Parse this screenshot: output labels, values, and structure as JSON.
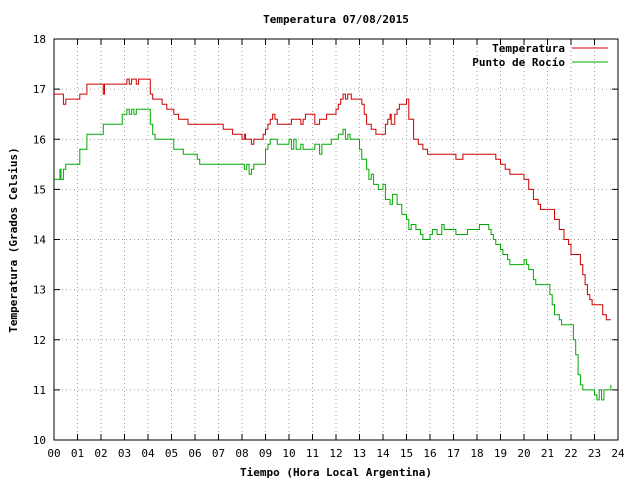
{
  "chart_data": {
    "type": "line",
    "title": "Temperatura 07/08/2015",
    "xlabel": "Tiempo (Hora Local Argentina)",
    "ylabel": "Temperatura (Grados Celsius)",
    "xlim": [
      0,
      24
    ],
    "ylim": [
      10,
      18
    ],
    "xticks": [
      "00",
      "01",
      "02",
      "03",
      "04",
      "05",
      "06",
      "07",
      "08",
      "09",
      "10",
      "11",
      "12",
      "13",
      "14",
      "15",
      "16",
      "17",
      "18",
      "19",
      "20",
      "21",
      "22",
      "23",
      "24"
    ],
    "yticks": [
      "10",
      "11",
      "12",
      "13",
      "14",
      "15",
      "16",
      "17",
      "18"
    ],
    "grid": true,
    "legend_position": "top-right",
    "series": [
      {
        "name": "Temperatura",
        "color": "#cc0000",
        "points": [
          [
            0.0,
            16.9
          ],
          [
            0.3,
            16.9
          ],
          [
            0.4,
            16.7
          ],
          [
            0.5,
            16.8
          ],
          [
            1.0,
            16.8
          ],
          [
            1.1,
            16.9
          ],
          [
            1.3,
            16.9
          ],
          [
            1.4,
            17.1
          ],
          [
            2.0,
            17.1
          ],
          [
            2.1,
            16.9
          ],
          [
            2.15,
            17.1
          ],
          [
            3.0,
            17.1
          ],
          [
            3.1,
            17.2
          ],
          [
            3.2,
            17.1
          ],
          [
            3.3,
            17.2
          ],
          [
            3.5,
            17.1
          ],
          [
            3.6,
            17.2
          ],
          [
            4.0,
            17.2
          ],
          [
            4.1,
            16.9
          ],
          [
            4.2,
            16.8
          ],
          [
            4.5,
            16.8
          ],
          [
            4.6,
            16.7
          ],
          [
            4.8,
            16.6
          ],
          [
            5.0,
            16.6
          ],
          [
            5.1,
            16.5
          ],
          [
            5.3,
            16.4
          ],
          [
            5.6,
            16.4
          ],
          [
            5.7,
            16.3
          ],
          [
            7.1,
            16.3
          ],
          [
            7.2,
            16.2
          ],
          [
            7.5,
            16.2
          ],
          [
            7.6,
            16.1
          ],
          [
            7.9,
            16.1
          ],
          [
            8.0,
            16.0
          ],
          [
            8.1,
            16.1
          ],
          [
            8.15,
            16.0
          ],
          [
            8.3,
            16.0
          ],
          [
            8.4,
            15.9
          ],
          [
            8.5,
            16.0
          ],
          [
            8.9,
            16.1
          ],
          [
            9.0,
            16.2
          ],
          [
            9.1,
            16.3
          ],
          [
            9.2,
            16.4
          ],
          [
            9.3,
            16.5
          ],
          [
            9.4,
            16.4
          ],
          [
            9.5,
            16.3
          ],
          [
            10.0,
            16.3
          ],
          [
            10.1,
            16.4
          ],
          [
            10.4,
            16.4
          ],
          [
            10.5,
            16.3
          ],
          [
            10.6,
            16.4
          ],
          [
            10.7,
            16.5
          ],
          [
            11.0,
            16.5
          ],
          [
            11.1,
            16.3
          ],
          [
            11.3,
            16.4
          ],
          [
            11.5,
            16.4
          ],
          [
            11.6,
            16.5
          ],
          [
            11.8,
            16.5
          ],
          [
            12.0,
            16.6
          ],
          [
            12.1,
            16.7
          ],
          [
            12.2,
            16.8
          ],
          [
            12.3,
            16.9
          ],
          [
            12.4,
            16.8
          ],
          [
            12.5,
            16.9
          ],
          [
            12.6,
            16.9
          ],
          [
            12.65,
            16.8
          ],
          [
            12.9,
            16.8
          ],
          [
            13.1,
            16.7
          ],
          [
            13.2,
            16.5
          ],
          [
            13.3,
            16.3
          ],
          [
            13.5,
            16.2
          ],
          [
            13.7,
            16.1
          ],
          [
            14.0,
            16.1
          ],
          [
            14.1,
            16.3
          ],
          [
            14.2,
            16.4
          ],
          [
            14.3,
            16.5
          ],
          [
            14.35,
            16.3
          ],
          [
            14.5,
            16.5
          ],
          [
            14.6,
            16.6
          ],
          [
            14.7,
            16.7
          ],
          [
            15.0,
            16.8
          ],
          [
            15.1,
            16.4
          ],
          [
            15.3,
            16.0
          ],
          [
            15.5,
            15.9
          ],
          [
            15.7,
            15.8
          ],
          [
            15.9,
            15.7
          ],
          [
            16.0,
            15.7
          ],
          [
            17.0,
            15.7
          ],
          [
            17.1,
            15.6
          ],
          [
            17.3,
            15.6
          ],
          [
            17.4,
            15.7
          ],
          [
            18.7,
            15.7
          ],
          [
            18.8,
            15.6
          ],
          [
            19.0,
            15.5
          ],
          [
            19.2,
            15.4
          ],
          [
            19.4,
            15.3
          ],
          [
            19.9,
            15.3
          ],
          [
            20.0,
            15.2
          ],
          [
            20.2,
            15.0
          ],
          [
            20.4,
            14.8
          ],
          [
            20.6,
            14.7
          ],
          [
            20.7,
            14.6
          ],
          [
            21.2,
            14.6
          ],
          [
            21.3,
            14.4
          ],
          [
            21.5,
            14.2
          ],
          [
            21.7,
            14.0
          ],
          [
            21.9,
            13.9
          ],
          [
            22.0,
            13.7
          ],
          [
            22.3,
            13.7
          ],
          [
            22.4,
            13.5
          ],
          [
            22.5,
            13.3
          ],
          [
            22.6,
            13.1
          ],
          [
            22.7,
            12.9
          ],
          [
            22.8,
            12.8
          ],
          [
            22.9,
            12.7
          ],
          [
            23.3,
            12.7
          ],
          [
            23.35,
            12.5
          ],
          [
            23.5,
            12.4
          ],
          [
            23.7,
            12.4
          ]
        ]
      },
      {
        "name": "Punto de Rocío",
        "color": "#00aa00",
        "points": [
          [
            0.0,
            15.2
          ],
          [
            0.2,
            15.2
          ],
          [
            0.25,
            15.4
          ],
          [
            0.3,
            15.2
          ],
          [
            0.4,
            15.4
          ],
          [
            0.5,
            15.5
          ],
          [
            1.0,
            15.5
          ],
          [
            1.1,
            15.8
          ],
          [
            1.3,
            15.8
          ],
          [
            1.4,
            16.1
          ],
          [
            2.0,
            16.1
          ],
          [
            2.1,
            16.3
          ],
          [
            2.6,
            16.3
          ],
          [
            2.9,
            16.5
          ],
          [
            3.0,
            16.5
          ],
          [
            3.1,
            16.6
          ],
          [
            3.2,
            16.5
          ],
          [
            3.3,
            16.6
          ],
          [
            3.4,
            16.5
          ],
          [
            3.5,
            16.6
          ],
          [
            4.0,
            16.6
          ],
          [
            4.1,
            16.3
          ],
          [
            4.2,
            16.1
          ],
          [
            4.3,
            16.0
          ],
          [
            5.0,
            16.0
          ],
          [
            5.1,
            15.8
          ],
          [
            5.4,
            15.8
          ],
          [
            5.5,
            15.7
          ],
          [
            6.0,
            15.7
          ],
          [
            6.1,
            15.6
          ],
          [
            6.2,
            15.5
          ],
          [
            7.4,
            15.5
          ],
          [
            7.5,
            15.5
          ],
          [
            8.0,
            15.5
          ],
          [
            8.1,
            15.4
          ],
          [
            8.2,
            15.5
          ],
          [
            8.3,
            15.3
          ],
          [
            8.4,
            15.4
          ],
          [
            8.5,
            15.5
          ],
          [
            8.8,
            15.5
          ],
          [
            9.0,
            15.8
          ],
          [
            9.1,
            15.9
          ],
          [
            9.2,
            16.0
          ],
          [
            9.4,
            16.0
          ],
          [
            9.5,
            15.9
          ],
          [
            9.9,
            15.9
          ],
          [
            10.0,
            16.0
          ],
          [
            10.1,
            15.8
          ],
          [
            10.2,
            16.0
          ],
          [
            10.3,
            15.8
          ],
          [
            10.5,
            15.9
          ],
          [
            10.6,
            15.8
          ],
          [
            11.0,
            15.8
          ],
          [
            11.1,
            15.9
          ],
          [
            11.2,
            15.9
          ],
          [
            11.3,
            15.7
          ],
          [
            11.4,
            15.9
          ],
          [
            11.6,
            15.9
          ],
          [
            11.8,
            16.0
          ],
          [
            12.0,
            16.0
          ],
          [
            12.1,
            16.1
          ],
          [
            12.2,
            16.1
          ],
          [
            12.3,
            16.2
          ],
          [
            12.4,
            16.0
          ],
          [
            12.5,
            16.1
          ],
          [
            12.6,
            16.0
          ],
          [
            12.9,
            16.0
          ],
          [
            13.0,
            15.8
          ],
          [
            13.1,
            15.6
          ],
          [
            13.3,
            15.4
          ],
          [
            13.4,
            15.2
          ],
          [
            13.5,
            15.3
          ],
          [
            13.6,
            15.1
          ],
          [
            13.8,
            15.0
          ],
          [
            14.0,
            15.1
          ],
          [
            14.1,
            14.8
          ],
          [
            14.3,
            14.7
          ],
          [
            14.4,
            14.9
          ],
          [
            14.6,
            14.7
          ],
          [
            14.8,
            14.5
          ],
          [
            15.0,
            14.4
          ],
          [
            15.1,
            14.2
          ],
          [
            15.2,
            14.3
          ],
          [
            15.4,
            14.2
          ],
          [
            15.6,
            14.1
          ],
          [
            15.7,
            14.0
          ],
          [
            16.0,
            14.1
          ],
          [
            16.1,
            14.2
          ],
          [
            16.3,
            14.1
          ],
          [
            16.5,
            14.3
          ],
          [
            16.6,
            14.2
          ],
          [
            17.0,
            14.2
          ],
          [
            17.1,
            14.1
          ],
          [
            17.5,
            14.1
          ],
          [
            17.6,
            14.2
          ],
          [
            18.0,
            14.2
          ],
          [
            18.1,
            14.3
          ],
          [
            18.4,
            14.3
          ],
          [
            18.5,
            14.2
          ],
          [
            18.6,
            14.1
          ],
          [
            18.7,
            14.0
          ],
          [
            18.8,
            13.9
          ],
          [
            19.0,
            13.8
          ],
          [
            19.1,
            13.7
          ],
          [
            19.3,
            13.6
          ],
          [
            19.4,
            13.5
          ],
          [
            19.9,
            13.5
          ],
          [
            20.0,
            13.6
          ],
          [
            20.1,
            13.5
          ],
          [
            20.2,
            13.4
          ],
          [
            20.4,
            13.2
          ],
          [
            20.5,
            13.1
          ],
          [
            21.0,
            13.1
          ],
          [
            21.1,
            12.9
          ],
          [
            21.2,
            12.7
          ],
          [
            21.3,
            12.5
          ],
          [
            21.5,
            12.4
          ],
          [
            21.6,
            12.3
          ],
          [
            22.0,
            12.3
          ],
          [
            22.1,
            12.0
          ],
          [
            22.2,
            11.7
          ],
          [
            22.3,
            11.3
          ],
          [
            22.4,
            11.1
          ],
          [
            22.5,
            11.0
          ],
          [
            22.9,
            11.0
          ],
          [
            23.0,
            10.9
          ],
          [
            23.1,
            10.8
          ],
          [
            23.2,
            11.0
          ],
          [
            23.3,
            10.8
          ],
          [
            23.4,
            11.0
          ],
          [
            23.6,
            11.0
          ],
          [
            23.7,
            11.1
          ]
        ]
      }
    ]
  }
}
